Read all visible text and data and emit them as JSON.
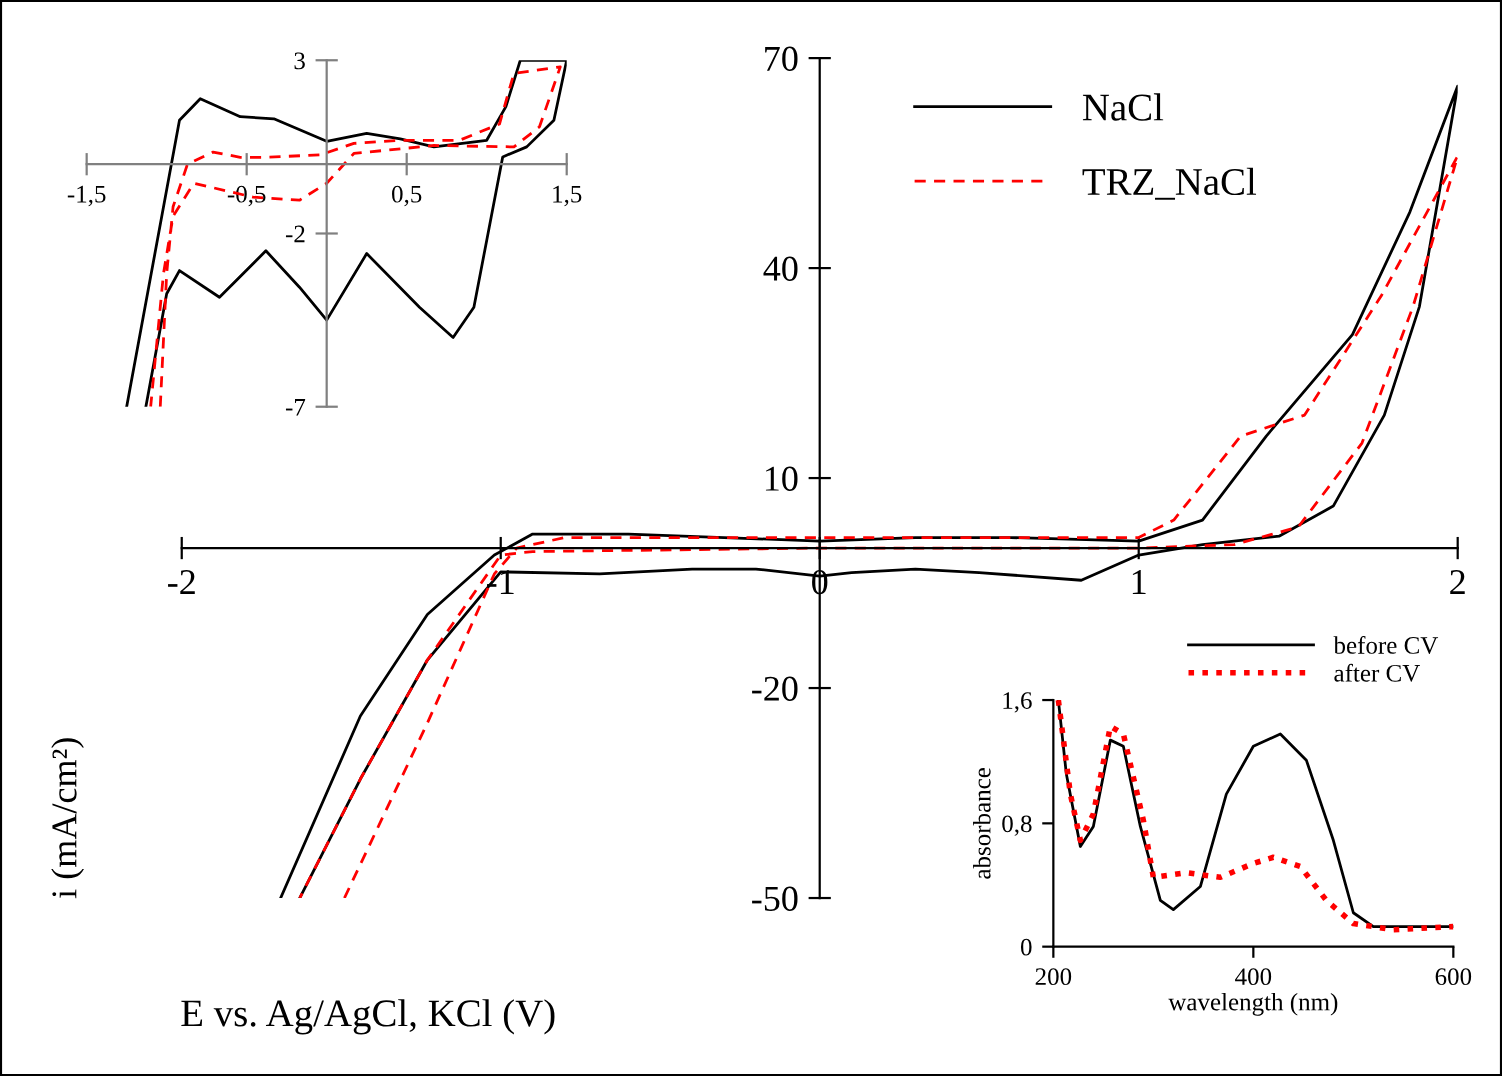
{
  "chart_data": [
    {
      "type": "line",
      "xlabel": "E vs. Ag/AgCl, KCl (V)",
      "ylabel": "i (mA/cm²)",
      "xlim": [
        -2,
        2
      ],
      "ylim": [
        -50,
        70
      ],
      "xticks": [
        -2,
        -1,
        0,
        1,
        2
      ],
      "yticks": [
        -50,
        -20,
        10,
        40,
        70
      ],
      "legend": "top right",
      "series": [
        {
          "name": "NaCl",
          "color": "#000000",
          "line_style": "solid",
          "x": [
            -1.69,
            -1.44,
            -1.23,
            -1.02,
            -0.9,
            -0.6,
            -0.3,
            0,
            0.3,
            0.6,
            1.0,
            1.2,
            1.4,
            1.67,
            1.85,
            2.0,
            1.88,
            1.77,
            1.61,
            1.44,
            1.2,
            1.0,
            0.82,
            0.5,
            0.3,
            0.1,
            0,
            -0.2,
            -0.4,
            -0.69,
            -1.0,
            -1.23,
            -1.44,
            -1.63
          ],
          "values": [
            -50,
            -24,
            -9.5,
            -1,
            2,
            2,
            1.5,
            1,
            1.5,
            1.5,
            1,
            4,
            16,
            30.5,
            48,
            66,
            34.5,
            19,
            6,
            1.7,
            0.5,
            -1,
            -4.6,
            -3.5,
            -3,
            -3.5,
            -4,
            -3,
            -3,
            -3.7,
            -3.4,
            -16,
            -33,
            -50
          ]
        },
        {
          "name": "TRZ_NaCl",
          "color": "#ff0000",
          "line_style": "dashed",
          "x": [
            -1.49,
            -1.23,
            -1.02,
            -0.95,
            -0.8,
            0,
            1.0,
            1.11,
            1.32,
            1.52,
            1.76,
            2.0,
            1.86,
            1.7,
            1.5,
            1.3,
            1.0,
            0,
            -0.9,
            -1.0,
            -1.23,
            -1.44,
            -1.63
          ],
          "values": [
            -50,
            -25,
            -3.7,
            0,
            1.5,
            1.5,
            1.5,
            4,
            16,
            19,
            36,
            56,
            34.5,
            15,
            3,
            0.5,
            0,
            0,
            -0.5,
            -1,
            -16,
            -33,
            -50
          ]
        }
      ]
    },
    {
      "type": "line",
      "xlim": [
        -1.5,
        1.5
      ],
      "ylim": [
        -7,
        3
      ],
      "xticks": [
        {
          "value": -1.5,
          "label": "-1,5"
        },
        {
          "value": -0.5,
          "label": "-0,5"
        },
        {
          "value": 0.5,
          "label": "0,5"
        },
        {
          "value": 1.5,
          "label": "1,5"
        }
      ],
      "yticks": [
        -7,
        -2,
        3
      ],
      "series": [
        {
          "color": "#000000",
          "line_style": "solid",
          "x": [
            -1.25,
            -0.92,
            -0.79,
            -0.54,
            -0.33,
            0.0,
            0.25,
            0.46,
            0.67,
            1.0,
            1.12,
            1.21,
            1.5,
            1.42,
            1.25,
            1.1,
            1.0,
            0.92,
            0.79,
            0.58,
            0.25,
            0.0,
            -0.17,
            -0.38,
            -0.67,
            -0.92,
            -1.0,
            -1.13
          ],
          "values": [
            -7,
            1.27,
            1.89,
            1.37,
            1.31,
            0.66,
            0.89,
            0.73,
            0.5,
            0.69,
            1.66,
            3,
            3,
            1.27,
            0.5,
            0.21,
            -2.2,
            -4.13,
            -5,
            -4.13,
            -2.58,
            -4.5,
            -3.55,
            -2.5,
            -3.84,
            -3.07,
            -3.74,
            -7
          ]
        },
        {
          "color": "#ff0000",
          "line_style": "dashed",
          "x": [
            -1.04,
            -1.0,
            -0.96,
            -0.87,
            -0.71,
            -0.54,
            -0.38,
            -0.04,
            0.17,
            0.46,
            0.83,
            1.08,
            1.17,
            1.46,
            1.33,
            1.17,
            0.67,
            0.17,
            0.0,
            -0.17,
            -0.46,
            -0.83,
            -0.96,
            -1.02,
            -1.1
          ],
          "values": [
            -7,
            -3.16,
            -1.23,
            0,
            0.35,
            0.2,
            0.2,
            0.27,
            0.6,
            0.69,
            0.69,
            1.16,
            2.62,
            2.81,
            1.08,
            0.5,
            0.54,
            0.31,
            -0.55,
            -1.04,
            -0.95,
            -0.55,
            -1.5,
            -3.16,
            -7
          ]
        }
      ]
    },
    {
      "type": "line",
      "xlabel": "wavelength (nm)",
      "ylabel": "absorbance",
      "xlim": [
        200,
        600
      ],
      "ylim": [
        0,
        1.6
      ],
      "xticks": [
        200,
        400,
        600
      ],
      "yticks": [
        0,
        {
          "value": 0.8,
          "label": "0,8"
        },
        {
          "value": 1.6,
          "label": "1,6"
        }
      ],
      "legend": "top right",
      "series": [
        {
          "name": "before CV",
          "color": "#000000",
          "line_style": "solid",
          "x": [
            205,
            213,
            227,
            240,
            257,
            270,
            287,
            307,
            320,
            347,
            373,
            400,
            427,
            453,
            480,
            500,
            520,
            600
          ],
          "values": [
            1.6,
            1.12,
            0.65,
            0.78,
            1.34,
            1.3,
            0.78,
            0.3,
            0.24,
            0.39,
            0.99,
            1.3,
            1.38,
            1.21,
            0.69,
            0.22,
            0.13,
            0.13
          ]
        },
        {
          "name": "after CV",
          "color": "#ff0000",
          "line_style": "dotted",
          "x": [
            205,
            217,
            227,
            240,
            257,
            270,
            290,
            300,
            333,
            367,
            400,
            420,
            447,
            473,
            500,
            540,
            600
          ],
          "values": [
            1.6,
            0.99,
            0.69,
            0.86,
            1.43,
            1.38,
            0.82,
            0.45,
            0.48,
            0.45,
            0.54,
            0.58,
            0.52,
            0.3,
            0.15,
            0.11,
            0.13
          ]
        }
      ]
    }
  ]
}
